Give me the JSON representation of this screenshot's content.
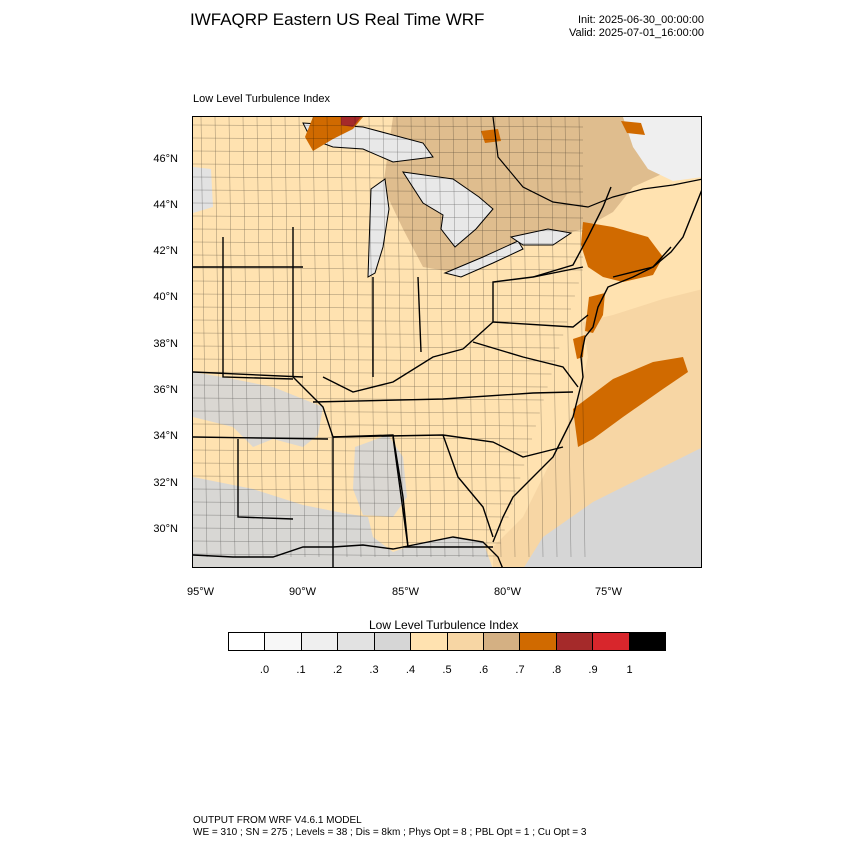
{
  "header": {
    "title": "IWFAQRP Eastern US Real Time WRF",
    "init": "Init: 2025-06-30_00:00:00",
    "valid": "Valid: 2025-07-01_16:00:00"
  },
  "plot": {
    "label": "Low Level Turbulence Index",
    "lat_labels": [
      "46°N",
      "44°N",
      "42°N",
      "40°N",
      "38°N",
      "36°N",
      "34°N",
      "32°N",
      "30°N"
    ],
    "lon_labels": [
      "95°W",
      "90°W",
      "85°W",
      "80°W",
      "75°W"
    ],
    "colors": {
      "background": "#ffe2b0",
      "water": "#e8e8e8",
      "low": "#d6d6d6",
      "mid": "#f7d6a4",
      "high": "#d4b083",
      "very_high": "#d06a00",
      "extreme": "#b9261f",
      "border": "#000000"
    }
  },
  "colorbar": {
    "title": "Low Level Turbulence Index",
    "colors": [
      "#ffffff",
      "#f7f7f7",
      "#efefef",
      "#e2e2e2",
      "#d6d6d6",
      "#ffe2b0",
      "#f7d6a4",
      "#d4b083",
      "#d06a00",
      "#a52a2a",
      "#d8262c",
      "#000000"
    ],
    "labels": [
      ".0",
      ".1",
      ".2",
      ".3",
      ".4",
      ".5",
      ".6",
      ".7",
      ".8",
      ".9",
      "1"
    ]
  },
  "footer": {
    "line1": "OUTPUT FROM WRF V4.6.1 MODEL",
    "line2": "WE = 310 ; SN = 275 ; Levels = 38 ; Dis = 8km ; Phys Opt = 8 ; PBL Opt = 1 ; Cu Opt = 3"
  }
}
